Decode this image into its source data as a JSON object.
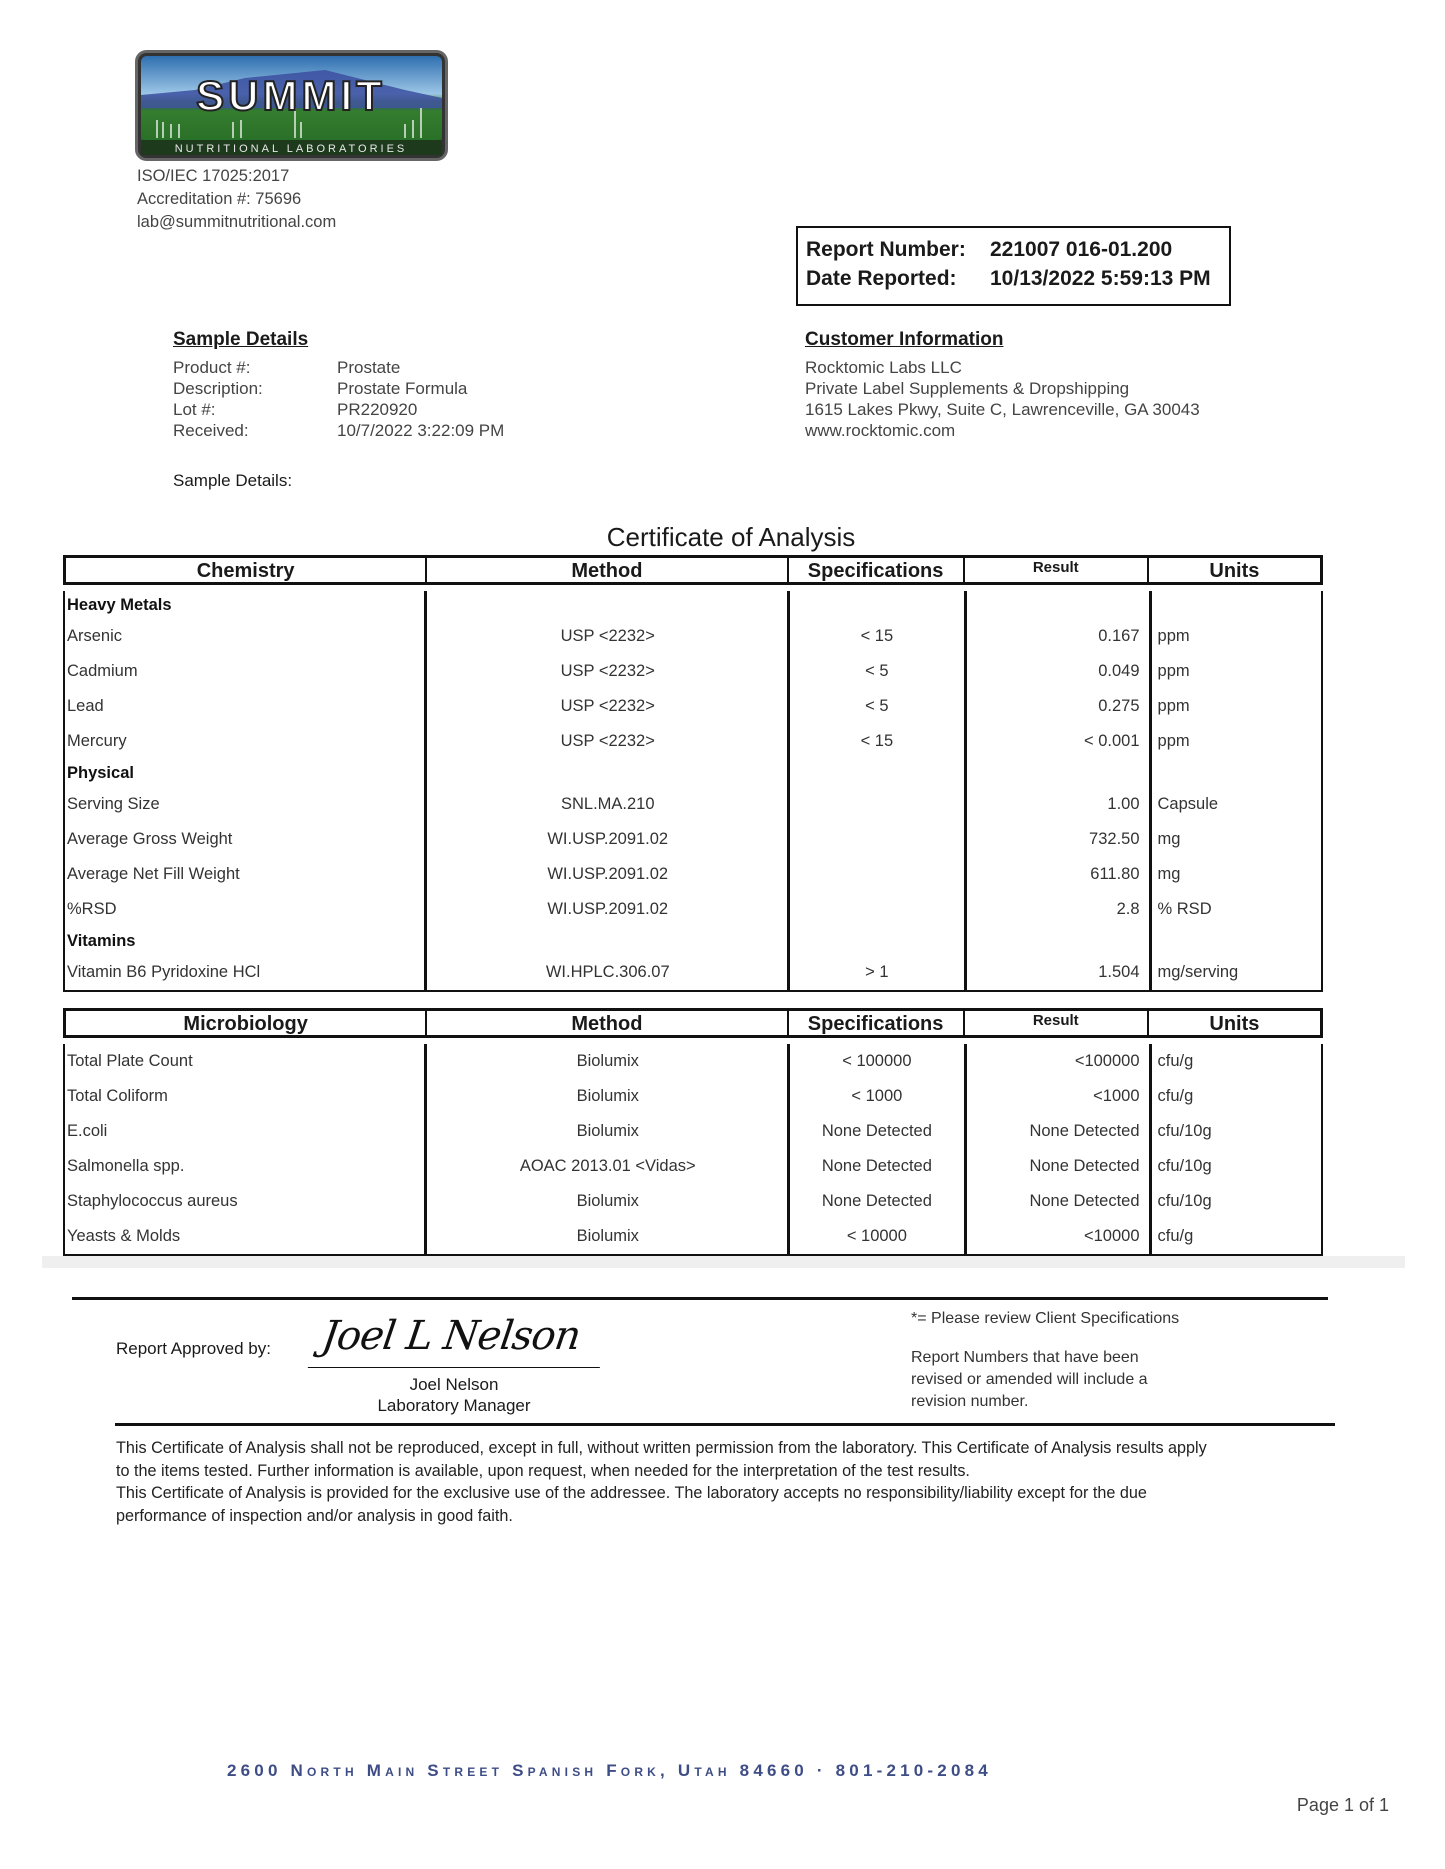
{
  "lab": {
    "logo_text": "SUMMIT",
    "logo_subtext": "NUTRITIONAL LABORATORIES",
    "iso": "ISO/IEC 17025:2017",
    "accreditation": "Accreditation #: 75696",
    "email": "lab@summitnutritional.com"
  },
  "report": {
    "number_label": "Report Number:",
    "number": "221007 016-01.200",
    "date_label": "Date Reported:",
    "date": "10/13/2022 5:59:13 PM"
  },
  "sample": {
    "heading": "Sample Details",
    "rows": [
      {
        "label": "Product #:",
        "value": "Prostate"
      },
      {
        "label": "Description:",
        "value": "Prostate Formula"
      },
      {
        "label": "Lot #:",
        "value": "PR220920"
      },
      {
        "label": "Received:",
        "value": "10/7/2022 3:22:09 PM"
      }
    ],
    "details_label": "Sample Details:"
  },
  "customer": {
    "heading": "Customer Information",
    "lines": [
      "Rocktomic Labs LLC",
      "Private Label Supplements & Dropshipping",
      "1615 Lakes Pkwy, Suite C, Lawrenceville, GA 30043",
      "www.rocktomic.com"
    ]
  },
  "title": "Certificate of Analysis",
  "chemistry": {
    "headers": [
      "Chemistry",
      "Method",
      "Specifications",
      "Result",
      "Units"
    ],
    "rows": [
      {
        "section": "Heavy Metals"
      },
      {
        "cells": [
          "Arsenic",
          "USP <2232>",
          "< 15",
          "0.167",
          "ppm"
        ]
      },
      {
        "cells": [
          "Cadmium",
          "USP <2232>",
          "< 5",
          "0.049",
          "ppm"
        ]
      },
      {
        "cells": [
          "Lead",
          "USP <2232>",
          "< 5",
          "0.275",
          "ppm"
        ]
      },
      {
        "cells": [
          "Mercury",
          "USP <2232>",
          "< 15",
          "< 0.001",
          "ppm"
        ]
      },
      {
        "section": "Physical"
      },
      {
        "cells": [
          "Serving Size",
          "SNL.MA.210",
          "",
          "1.00",
          "Capsule"
        ]
      },
      {
        "cells": [
          "Average Gross Weight",
          "WI.USP.2091.02",
          "",
          "732.50",
          "mg"
        ]
      },
      {
        "cells": [
          "Average Net Fill Weight",
          "WI.USP.2091.02",
          "",
          "611.80",
          "mg"
        ]
      },
      {
        "cells": [
          "%RSD",
          "WI.USP.2091.02",
          "",
          "2.8",
          "% RSD"
        ]
      },
      {
        "section": "Vitamins"
      },
      {
        "cells": [
          "Vitamin B6 Pyridoxine HCl",
          "WI.HPLC.306.07",
          "> 1",
          "1.504",
          "mg/serving"
        ]
      }
    ]
  },
  "microbiology": {
    "headers": [
      "Microbiology",
      "Method",
      "Specifications",
      "Result",
      "Units"
    ],
    "rows": [
      {
        "cells": [
          "Total Plate Count",
          "Biolumix",
          "< 100000",
          "<100000",
          "cfu/g"
        ]
      },
      {
        "cells": [
          "Total Coliform",
          "Biolumix",
          "< 1000",
          "<1000",
          "cfu/g"
        ]
      },
      {
        "cells": [
          "E.coli",
          "Biolumix",
          "None Detected",
          "None Detected",
          "cfu/10g"
        ]
      },
      {
        "cells": [
          "Salmonella spp.",
          "AOAC 2013.01 <Vidas>",
          "None Detected",
          "None Detected",
          "cfu/10g"
        ]
      },
      {
        "cells": [
          "Staphylococcus aureus",
          "Biolumix",
          "None Detected",
          "None Detected",
          "cfu/10g"
        ]
      },
      {
        "cells": [
          "Yeasts & Molds",
          "Biolumix",
          "< 10000",
          "<10000",
          "cfu/g"
        ]
      }
    ]
  },
  "approval": {
    "label": "Report Approved by:",
    "signature": "Joel L Nelson",
    "name": "Joel Nelson",
    "role": "Laboratory Manager"
  },
  "notes": {
    "client_spec": "*= Please review Client Specifications",
    "revision": [
      "Report Numbers that have been",
      "revised or amended will include a",
      "revision number."
    ]
  },
  "disclaimer": [
    "This Certificate of Analysis shall not be reproduced, except in full, without written permission from the laboratory. This Certificate of Analysis results apply",
    "to the items tested. Further information is available, upon request, when needed for the interpretation of the test results.",
    "This Certificate of Analysis is provided for the exclusive use of the addressee. The laboratory accepts no responsibility/liability except for the due",
    "performance of inspection and/or analysis in good faith."
  ],
  "footer": {
    "address": "2600 North Main Street Spanish Fork, Utah 84660 · 801-210-2084",
    "page": "Page 1 of 1"
  }
}
